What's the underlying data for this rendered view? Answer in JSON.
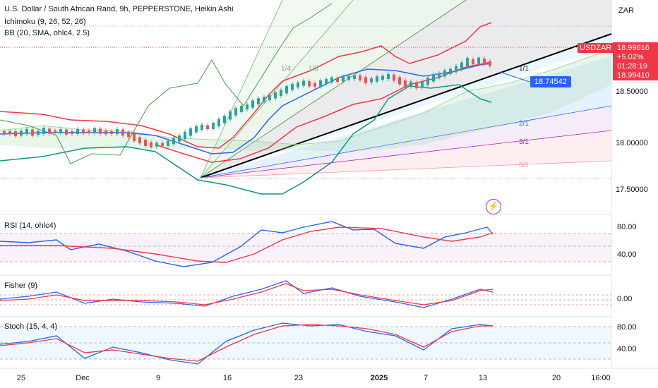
{
  "legend": {
    "title": "U.S. Dollar / South African Rand, 9h, PEPPERSTONE, Heikin Ashi",
    "ichimoku": "Ichimoku (9, 26, 52, 26)",
    "bb": "BB (20, SMA, ohlc4, 2.5)"
  },
  "currency": "ZAR",
  "price_axis": {
    "ticks": [
      "18.50000",
      "18.00000",
      "17.50000"
    ],
    "symbol": "USDZAR",
    "last_price": "18.99616",
    "change": "+5.02%",
    "countdown": "01:28:19",
    "low_price": "18.99410",
    "marker_price": "18.74542"
  },
  "gann_labels": [
    "1/4",
    "1/3",
    "1/1",
    "2/1",
    "3/1",
    "8/1"
  ],
  "panes": {
    "rsi": {
      "label": "RSI (14, ohlc4)",
      "ticks": [
        "80.00",
        "40.00"
      ]
    },
    "fisher": {
      "label": "Fisher (9)",
      "ticks": [
        "0.00"
      ]
    },
    "stoch": {
      "label": "Stoch (15, 4, 4)",
      "ticks": [
        "80.00",
        "40.00"
      ]
    }
  },
  "time_axis": {
    "labels": [
      "25",
      "Dec",
      "9",
      "16",
      "23",
      "2025",
      "7",
      "13",
      "20",
      "16:00"
    ]
  },
  "colors": {
    "up": "#26a69a",
    "down": "#ef5350",
    "bb_upper": "#f23645",
    "bb_basis": "#2962ff",
    "ichimoku_lead": "#388e3c",
    "price_tag": "#f23645",
    "marker": "#2962ff",
    "rsi_line": "#2962ff",
    "rsi_ma": "#f23645"
  }
}
